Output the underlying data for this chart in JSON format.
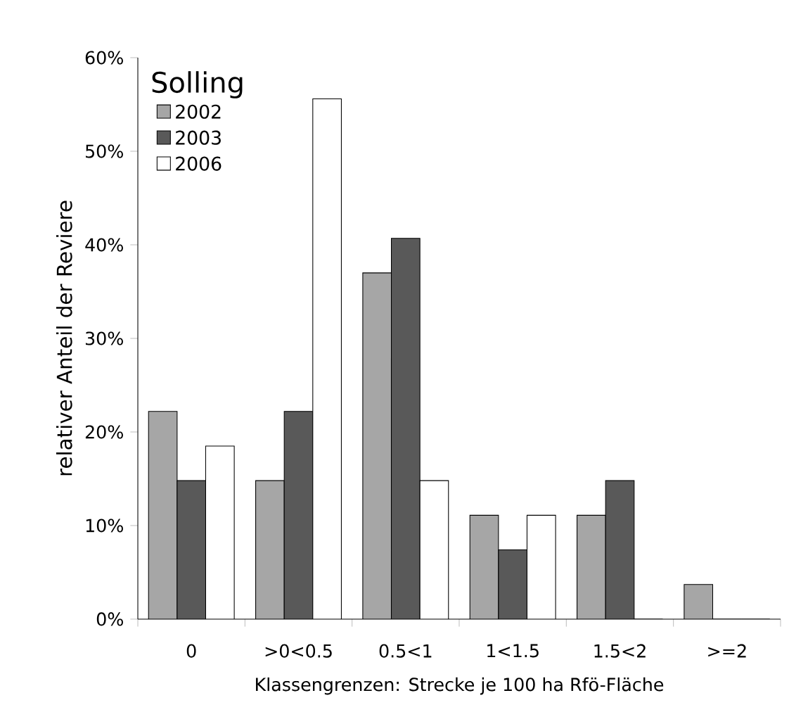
{
  "chart_data": {
    "type": "bar",
    "xlabel": "Klassengrenzen: Strecke je 100 ha Rfö-Fläche",
    "ylabel": "relativer Anteil der Reviere",
    "legend_title": "Solling",
    "categories": [
      "0",
      ">0<0.5",
      "0.5<1",
      "1<1.5",
      "1.5<2",
      ">=2"
    ],
    "series": [
      {
        "name": "2002",
        "color": "#a6a6a6",
        "values": [
          22.2,
          14.8,
          37.0,
          11.1,
          11.1,
          3.7
        ]
      },
      {
        "name": "2003",
        "color": "#595959",
        "values": [
          14.8,
          22.2,
          40.7,
          7.4,
          14.8,
          0
        ]
      },
      {
        "name": "2006",
        "color": "#ffffff",
        "values": [
          18.5,
          55.6,
          14.8,
          11.1,
          0,
          0
        ]
      }
    ],
    "ylim": [
      0,
      60
    ],
    "yticks": [
      {
        "value": 0,
        "label": "0%"
      },
      {
        "value": 10,
        "label": "10%"
      },
      {
        "value": 20,
        "label": "20%"
      },
      {
        "value": 30,
        "label": "30%"
      },
      {
        "value": 40,
        "label": "40%"
      },
      {
        "value": 50,
        "label": "50%"
      },
      {
        "value": 60,
        "label": "60%"
      }
    ],
    "grid": false,
    "legend": "top left"
  }
}
